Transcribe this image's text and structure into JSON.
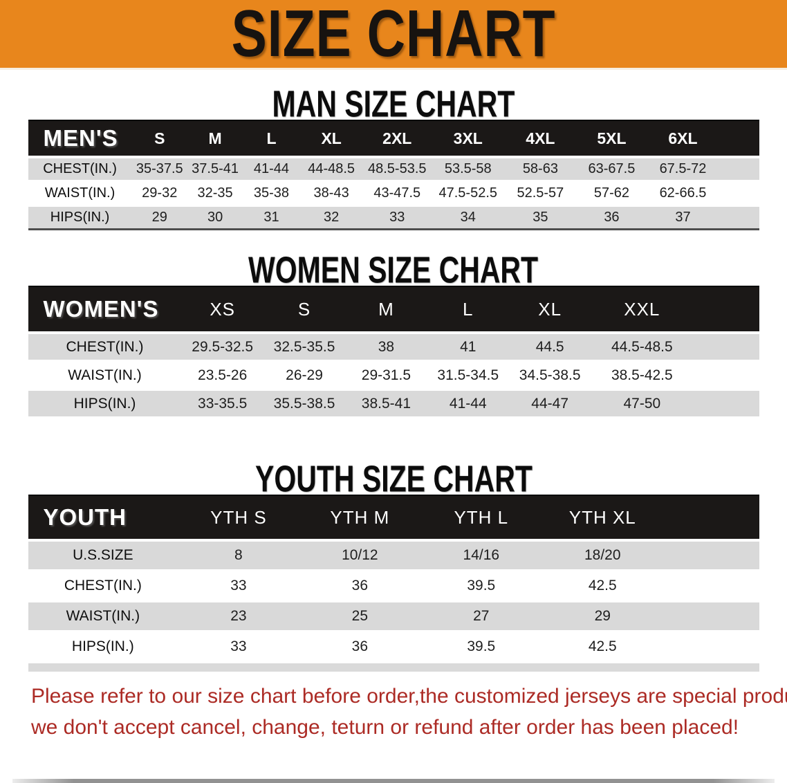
{
  "banner": {
    "title": "SIZE CHART",
    "bg_color": "#E8861C",
    "text_color": "#171310"
  },
  "sections": [
    {
      "title": "MAN SIZE CHART",
      "header_label": "MEN'S",
      "columns": [
        "S",
        "M",
        "L",
        "XL",
        "2XL",
        "3XL",
        "4XL",
        "5XL",
        "6XL"
      ],
      "rows": [
        {
          "label": "CHEST(IN.)",
          "values": [
            "35-37.5",
            "37.5-41",
            "41-44",
            "44-48.5",
            "48.5-53.5",
            "53.5-58",
            "58-63",
            "63-67.5",
            "67.5-72"
          ]
        },
        {
          "label": "WAIST(IN.)",
          "values": [
            "29-32",
            "32-35",
            "35-38",
            "38-43",
            "43-47.5",
            "47.5-52.5",
            "52.5-57",
            "57-62",
            "62-66.5"
          ]
        },
        {
          "label": "HIPS(IN.)",
          "values": [
            "29",
            "30",
            "31",
            "32",
            "33",
            "34",
            "35",
            "36",
            "37"
          ]
        }
      ]
    },
    {
      "title": "WOMEN SIZE CHART",
      "header_label": "WOMEN'S",
      "columns": [
        "XS",
        "S",
        "M",
        "L",
        "XL",
        "XXL"
      ],
      "rows": [
        {
          "label": "CHEST(IN.)",
          "values": [
            "29.5-32.5",
            "32.5-35.5",
            "38",
            "41",
            "44.5",
            "44.5-48.5"
          ]
        },
        {
          "label": "WAIST(IN.)",
          "values": [
            "23.5-26",
            "26-29",
            "29-31.5",
            "31.5-34.5",
            "34.5-38.5",
            "38.5-42.5"
          ]
        },
        {
          "label": "HIPS(IN.)",
          "values": [
            "33-35.5",
            "35.5-38.5",
            "38.5-41",
            "41-44",
            "44-47",
            "47-50"
          ]
        }
      ]
    },
    {
      "title": "YOUTH SIZE CHART",
      "header_label": "YOUTH",
      "columns": [
        "YTH S",
        "YTH M",
        "YTH L",
        "YTH XL"
      ],
      "rows": [
        {
          "label": "U.S.SIZE",
          "values": [
            "8",
            "10/12",
            "14/16",
            "18/20"
          ]
        },
        {
          "label": "CHEST(IN.)",
          "values": [
            "33",
            "36",
            "39.5",
            "42.5"
          ]
        },
        {
          "label": "WAIST(IN.)",
          "values": [
            "23",
            "25",
            "27",
            "29"
          ]
        },
        {
          "label": "HIPS(IN.)",
          "values": [
            "33",
            "36",
            "39.5",
            "42.5"
          ]
        }
      ]
    }
  ],
  "footer": {
    "line1": "Please refer to our size chart before order,the customized jerseys are special products,",
    "line2": "we don't accept cancel, change, teturn or refund after order has been placed!",
    "color": "#AC2B25"
  }
}
